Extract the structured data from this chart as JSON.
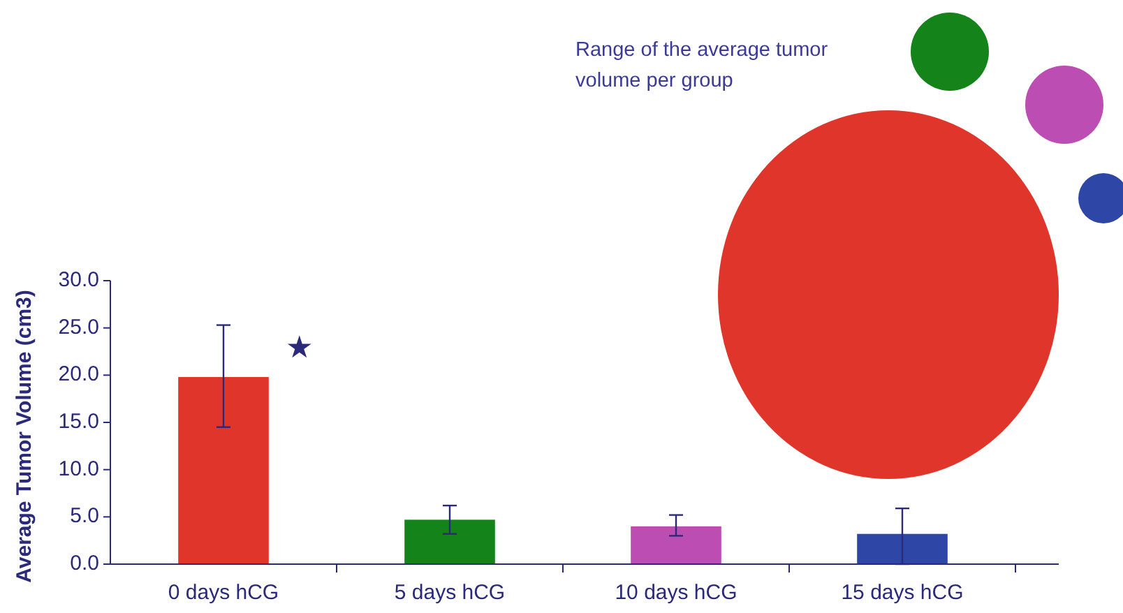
{
  "chart_data": {
    "type": "bar",
    "ylabel": "Average Tumor Volume (cm3)",
    "categories": [
      "0 days hCG",
      "5 days hCG",
      "10 days hCG",
      "15 days hCG"
    ],
    "values": [
      19.8,
      4.7,
      4.0,
      3.2
    ],
    "colors": [
      "#e0352a",
      "#14841a",
      "#bc4db3",
      "#2e46a6"
    ],
    "errors": [
      [
        14.5,
        25.3
      ],
      [
        3.2,
        6.2
      ],
      [
        3.0,
        5.2
      ],
      [
        0,
        5.9
      ]
    ],
    "ylim": [
      0,
      30
    ],
    "yticks": [
      {
        "value": 0,
        "label": "0.0"
      },
      {
        "value": 5,
        "label": "5.0"
      },
      {
        "value": 10,
        "label": "10.0"
      },
      {
        "value": 15,
        "label": "15.0"
      },
      {
        "value": 20,
        "label": "20.0"
      },
      {
        "value": 25,
        "label": "25.0"
      },
      {
        "value": 30,
        "label": "30.0"
      }
    ],
    "grid": false,
    "annotations": [
      {
        "text": "★",
        "x": "0 days hCG",
        "y": 22.7
      },
      "Range of the average tumor volume per group"
    ]
  }
}
